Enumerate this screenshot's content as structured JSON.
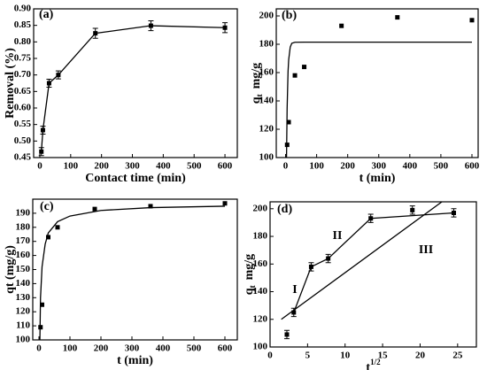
{
  "chart_data": [
    {
      "type": "line",
      "label": "(a)",
      "xlabel": "Contact time (min)",
      "ylabel": "Removal (%)",
      "xlim": [
        -20,
        640
      ],
      "ylim": [
        0.45,
        0.9
      ],
      "xticks": [
        0,
        100,
        200,
        300,
        400,
        500,
        600
      ],
      "yticks": [
        0.45,
        {
          "value": 0.5,
          "label": "0.50"
        },
        0.55,
        {
          "value": 0.6,
          "label": "0.60"
        },
        0.65,
        {
          "value": 0.7,
          "label": "0.70"
        },
        0.75,
        {
          "value": 0.8,
          "label": "0.80"
        },
        0.85,
        {
          "value": 0.9,
          "label": "0.90"
        }
      ],
      "series": [
        {
          "color": "#000000",
          "line": true,
          "marker": true,
          "x": [
            5,
            10,
            30,
            60,
            180,
            360,
            600
          ],
          "values": [
            0.468,
            0.533,
            0.675,
            0.7,
            0.826,
            0.849,
            0.843
          ],
          "errors": [
            0.012,
            0.012,
            0.012,
            0.012,
            0.015,
            0.015,
            0.015
          ]
        }
      ]
    },
    {
      "type": "line",
      "label": "(b)",
      "xlabel": "t  (min)",
      "ylabel": "q",
      "ylabel_sub": "t",
      "ylabel_unit": "mg/g",
      "xlim": [
        -30,
        620
      ],
      "ylim": [
        100,
        205
      ],
      "xticks": [
        0,
        100,
        200,
        300,
        400,
        500,
        600
      ],
      "yticks": [
        100,
        120,
        140,
        160,
        180,
        200
      ],
      "series": [
        {
          "color": "#000000",
          "line": false,
          "marker": true,
          "x": [
            5,
            10,
            30,
            60,
            180,
            360,
            600
          ],
          "values": [
            109,
            125,
            158,
            164,
            193,
            199,
            197
          ]
        },
        {
          "color": "#000000",
          "line": true,
          "marker": false,
          "x": [
            3,
            5,
            8,
            10,
            15,
            20,
            30,
            60,
            600
          ],
          "values": [
            100,
            135,
            161,
            169,
            178,
            180.7,
            181.4,
            181.5,
            181.5
          ]
        }
      ]
    },
    {
      "type": "line",
      "label": "(c)",
      "xlabel": "t (min)",
      "ylabel": "qt  (mg/g)",
      "xlim": [
        -20,
        640
      ],
      "ylim": [
        100,
        200
      ],
      "xticks": [
        0,
        100,
        200,
        300,
        400,
        500,
        600
      ],
      "yticks": [
        100,
        110,
        120,
        130,
        140,
        150,
        160,
        170,
        180,
        190
      ],
      "series": [
        {
          "color": "#000000",
          "line": false,
          "marker": true,
          "x": [
            5,
            10,
            30,
            60,
            180,
            360,
            600
          ],
          "values": [
            109,
            125,
            173,
            180,
            193,
            195,
            197
          ]
        },
        {
          "color": "#000000",
          "line": true,
          "marker": false,
          "x": [
            3,
            5,
            10,
            20,
            30,
            60,
            100,
            200,
            360,
            600
          ],
          "values": [
            100,
            130,
            152,
            168,
            176,
            184,
            188,
            192,
            194,
            195
          ]
        }
      ]
    },
    {
      "type": "line",
      "label": "(d)",
      "xlabel": "t",
      "xlabel_sup": "1/2",
      "ylabel": "q",
      "ylabel_sub": "t",
      "ylabel_unit": "mg/g",
      "xlim": [
        0,
        27.5
      ],
      "ylim": [
        100,
        205
      ],
      "xticks": [
        0,
        5,
        10,
        15,
        20,
        25
      ],
      "yticks": [
        100,
        120,
        140,
        160,
        180,
        200
      ],
      "annotations": [
        "I",
        "II",
        "III"
      ],
      "series": [
        {
          "color": "#000000",
          "line": false,
          "marker": true,
          "x": [
            2.24,
            3.16,
            5.48,
            7.75,
            13.42,
            18.97,
            24.49
          ],
          "values": [
            109,
            125,
            158,
            164,
            193,
            199,
            197
          ],
          "errors": [
            3,
            3,
            3,
            3,
            3,
            3,
            3
          ]
        },
        {
          "color": "#000000",
          "line": true,
          "marker": false,
          "x": [
            3.16,
            5.48,
            7.75,
            13.42,
            24.49
          ],
          "values": [
            125,
            158,
            164,
            193,
            197
          ]
        },
        {
          "color": "#000000",
          "line": true,
          "marker": false,
          "x": [
            1.5,
            22.9
          ],
          "values": [
            120,
            205
          ]
        }
      ]
    }
  ]
}
